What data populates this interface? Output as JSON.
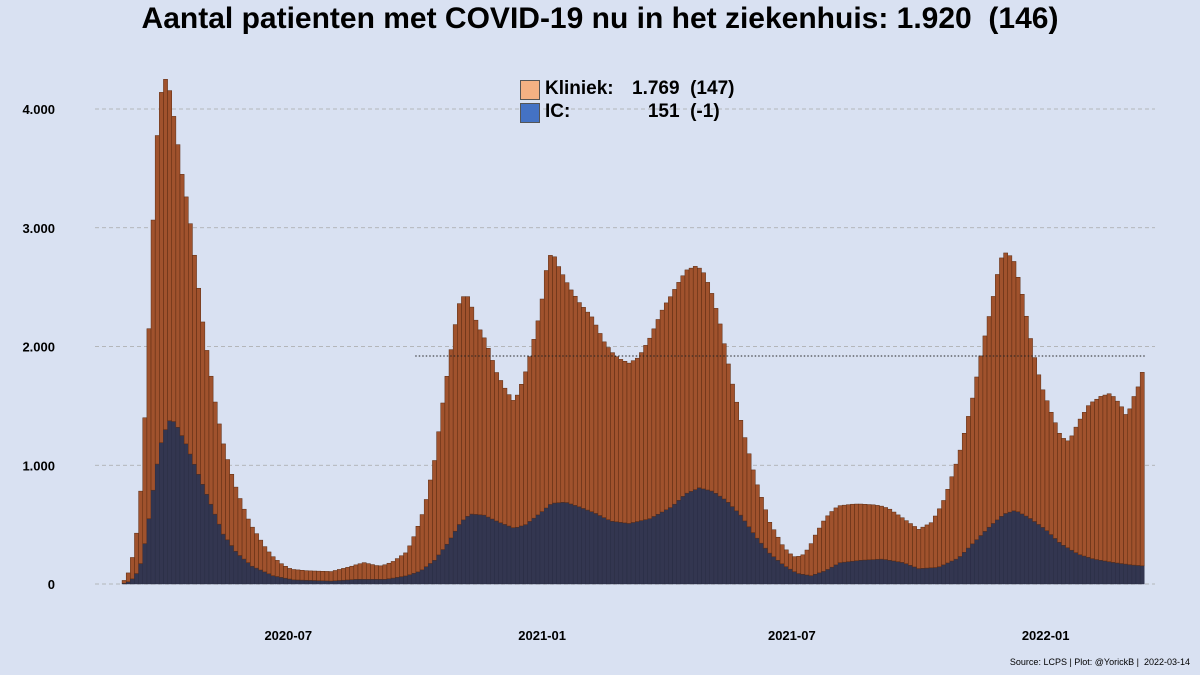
{
  "title": "Aantal patienten met COVID-19 nu in het ziekenhuis: 1.920  (146)",
  "source": "Source: LCPS | Plot: @YorickB |  2022-03-14",
  "colors": {
    "background": "#d9e1f2",
    "kliniek": "#a0522d",
    "kliniek_legend": "#f4b183",
    "ic": "#333650",
    "ic_legend": "#4472c4",
    "bar_edge": "#5a2a10",
    "grid": "#a8a8a8"
  },
  "legend": [
    {
      "label": "Kliniek:",
      "value": "1.769  (147)",
      "color": "#f4b183"
    },
    {
      "label": "IC:",
      "value": "   151  (-1)",
      "color": "#4472c4"
    }
  ],
  "chart_data": {
    "type": "bar",
    "stacked": true,
    "title": "Aantal patienten met COVID-19 nu in het ziekenhuis: 1.920  (146)",
    "xlabel": "",
    "ylabel": "",
    "x_range": [
      "2020-03-01",
      "2022-03-14"
    ],
    "ylim": [
      0,
      4400
    ],
    "yticks": [
      0,
      1000,
      2000,
      3000,
      4000
    ],
    "ytick_labels": [
      "0",
      "1.000",
      "2.000",
      "3.000",
      "4.000"
    ],
    "xticks": [
      "2020-07-01",
      "2021-01-01",
      "2021-07-01",
      "2022-01-01"
    ],
    "xtick_labels": [
      "2020-07",
      "2021-01",
      "2021-07",
      "2022-01"
    ],
    "grid": "horizontal dashed",
    "reference_line": {
      "y": 1920,
      "from": "2020-10-01",
      "to": "2022-03-14",
      "style": "dotted"
    },
    "bar_interval_days": 3,
    "series": [
      {
        "name": "Kliniek",
        "stack_order": "top",
        "keyframes": [
          [
            "2020-03-01",
            0
          ],
          [
            "2020-03-06",
            40
          ],
          [
            "2020-03-12",
            250
          ],
          [
            "2020-03-17",
            700
          ],
          [
            "2020-03-22",
            1600
          ],
          [
            "2020-03-26",
            2500
          ],
          [
            "2020-03-29",
            2900
          ],
          [
            "2020-04-02",
            3000
          ],
          [
            "2020-04-05",
            2850
          ],
          [
            "2020-04-10",
            2500
          ],
          [
            "2020-04-15",
            2200
          ],
          [
            "2020-04-20",
            2000
          ],
          [
            "2020-04-25",
            1700
          ],
          [
            "2020-05-01",
            1300
          ],
          [
            "2020-05-10",
            900
          ],
          [
            "2020-05-20",
            620
          ],
          [
            "2020-06-01",
            380
          ],
          [
            "2020-06-15",
            200
          ],
          [
            "2020-06-25",
            120
          ],
          [
            "2020-07-01",
            90
          ],
          [
            "2020-07-15",
            80
          ],
          [
            "2020-08-01",
            80
          ],
          [
            "2020-08-15",
            110
          ],
          [
            "2020-08-25",
            140
          ],
          [
            "2020-09-05",
            110
          ],
          [
            "2020-09-15",
            140
          ],
          [
            "2020-09-25",
            200
          ],
          [
            "2020-10-01",
            330
          ],
          [
            "2020-10-08",
            520
          ],
          [
            "2020-10-15",
            840
          ],
          [
            "2020-10-22",
            1300
          ],
          [
            "2020-10-29",
            1700
          ],
          [
            "2020-11-03",
            1900
          ],
          [
            "2020-11-08",
            1850
          ],
          [
            "2020-11-15",
            1600
          ],
          [
            "2020-11-22",
            1450
          ],
          [
            "2020-11-29",
            1250
          ],
          [
            "2020-12-06",
            1130
          ],
          [
            "2020-12-12",
            1060
          ],
          [
            "2020-12-18",
            1220
          ],
          [
            "2020-12-24",
            1420
          ],
          [
            "2020-12-31",
            1720
          ],
          [
            "2021-01-04",
            2000
          ],
          [
            "2021-01-08",
            2130
          ],
          [
            "2021-01-14",
            1960
          ],
          [
            "2021-01-20",
            1830
          ],
          [
            "2021-01-28",
            1720
          ],
          [
            "2021-02-06",
            1640
          ],
          [
            "2021-02-15",
            1480
          ],
          [
            "2021-02-25",
            1380
          ],
          [
            "2021-03-05",
            1350
          ],
          [
            "2021-03-12",
            1380
          ],
          [
            "2021-03-20",
            1520
          ],
          [
            "2021-03-30",
            1720
          ],
          [
            "2021-04-08",
            1820
          ],
          [
            "2021-04-16",
            1880
          ],
          [
            "2021-04-22",
            1880
          ],
          [
            "2021-04-28",
            1820
          ],
          [
            "2021-05-03",
            1700
          ],
          [
            "2021-05-10",
            1450
          ],
          [
            "2021-05-18",
            1070
          ],
          [
            "2021-05-26",
            760
          ],
          [
            "2021-06-05",
            470
          ],
          [
            "2021-06-15",
            260
          ],
          [
            "2021-06-25",
            150
          ],
          [
            "2021-07-02",
            120
          ],
          [
            "2021-07-10",
            170
          ],
          [
            "2021-07-18",
            330
          ],
          [
            "2021-07-25",
            440
          ],
          [
            "2021-08-01",
            480
          ],
          [
            "2021-08-15",
            480
          ],
          [
            "2021-08-30",
            460
          ],
          [
            "2021-09-10",
            430
          ],
          [
            "2021-09-20",
            370
          ],
          [
            "2021-10-01",
            330
          ],
          [
            "2021-10-10",
            380
          ],
          [
            "2021-10-20",
            560
          ],
          [
            "2021-10-30",
            860
          ],
          [
            "2021-11-08",
            1180
          ],
          [
            "2021-11-16",
            1560
          ],
          [
            "2021-11-23",
            1860
          ],
          [
            "2021-11-29",
            2170
          ],
          [
            "2021-12-04",
            2200
          ],
          [
            "2021-12-09",
            2100
          ],
          [
            "2021-12-15",
            1850
          ],
          [
            "2021-12-22",
            1460
          ],
          [
            "2021-12-29",
            1180
          ],
          [
            "2022-01-05",
            1030
          ],
          [
            "2022-01-12",
            900
          ],
          [
            "2022-01-18",
            900
          ],
          [
            "2022-01-25",
            1120
          ],
          [
            "2022-02-02",
            1300
          ],
          [
            "2022-02-10",
            1380
          ],
          [
            "2022-02-17",
            1420
          ],
          [
            "2022-02-24",
            1340
          ],
          [
            "2022-03-01",
            1240
          ],
          [
            "2022-03-06",
            1420
          ],
          [
            "2022-03-11",
            1560
          ],
          [
            "2022-03-14",
            1769
          ]
        ]
      },
      {
        "name": "IC",
        "stack_order": "bottom",
        "keyframes": [
          [
            "2020-03-01",
            0
          ],
          [
            "2020-03-06",
            10
          ],
          [
            "2020-03-12",
            60
          ],
          [
            "2020-03-17",
            200
          ],
          [
            "2020-03-22",
            550
          ],
          [
            "2020-03-27",
            950
          ],
          [
            "2020-04-01",
            1250
          ],
          [
            "2020-04-07",
            1400
          ],
          [
            "2020-04-12",
            1320
          ],
          [
            "2020-04-18",
            1180
          ],
          [
            "2020-04-25",
            980
          ],
          [
            "2020-05-05",
            700
          ],
          [
            "2020-05-15",
            420
          ],
          [
            "2020-05-25",
            260
          ],
          [
            "2020-06-05",
            150
          ],
          [
            "2020-06-20",
            70
          ],
          [
            "2020-07-05",
            35
          ],
          [
            "2020-08-01",
            25
          ],
          [
            "2020-08-20",
            40
          ],
          [
            "2020-09-10",
            40
          ],
          [
            "2020-09-25",
            70
          ],
          [
            "2020-10-05",
            110
          ],
          [
            "2020-10-15",
            200
          ],
          [
            "2020-10-25",
            350
          ],
          [
            "2020-11-03",
            520
          ],
          [
            "2020-11-10",
            590
          ],
          [
            "2020-11-20",
            580
          ],
          [
            "2020-12-01",
            520
          ],
          [
            "2020-12-12",
            470
          ],
          [
            "2020-12-20",
            500
          ],
          [
            "2020-12-31",
            600
          ],
          [
            "2021-01-08",
            680
          ],
          [
            "2021-01-18",
            690
          ],
          [
            "2021-01-28",
            650
          ],
          [
            "2021-02-08",
            600
          ],
          [
            "2021-02-20",
            530
          ],
          [
            "2021-03-05",
            510
          ],
          [
            "2021-03-20",
            550
          ],
          [
            "2021-04-05",
            650
          ],
          [
            "2021-04-15",
            760
          ],
          [
            "2021-04-25",
            810
          ],
          [
            "2021-05-05",
            780
          ],
          [
            "2021-05-15",
            700
          ],
          [
            "2021-05-25",
            580
          ],
          [
            "2021-06-05",
            400
          ],
          [
            "2021-06-15",
            260
          ],
          [
            "2021-06-25",
            160
          ],
          [
            "2021-07-05",
            90
          ],
          [
            "2021-07-15",
            70
          ],
          [
            "2021-07-25",
            110
          ],
          [
            "2021-08-05",
            180
          ],
          [
            "2021-08-20",
            200
          ],
          [
            "2021-09-05",
            210
          ],
          [
            "2021-09-20",
            180
          ],
          [
            "2021-10-01",
            130
          ],
          [
            "2021-10-15",
            140
          ],
          [
            "2021-10-30",
            220
          ],
          [
            "2021-11-10",
            350
          ],
          [
            "2021-11-22",
            490
          ],
          [
            "2021-12-02",
            590
          ],
          [
            "2021-12-10",
            620
          ],
          [
            "2021-12-20",
            560
          ],
          [
            "2022-01-01",
            460
          ],
          [
            "2022-01-12",
            340
          ],
          [
            "2022-01-25",
            250
          ],
          [
            "2022-02-05",
            210
          ],
          [
            "2022-02-20",
            180
          ],
          [
            "2022-03-05",
            160
          ],
          [
            "2022-03-14",
            151
          ]
        ]
      }
    ]
  }
}
